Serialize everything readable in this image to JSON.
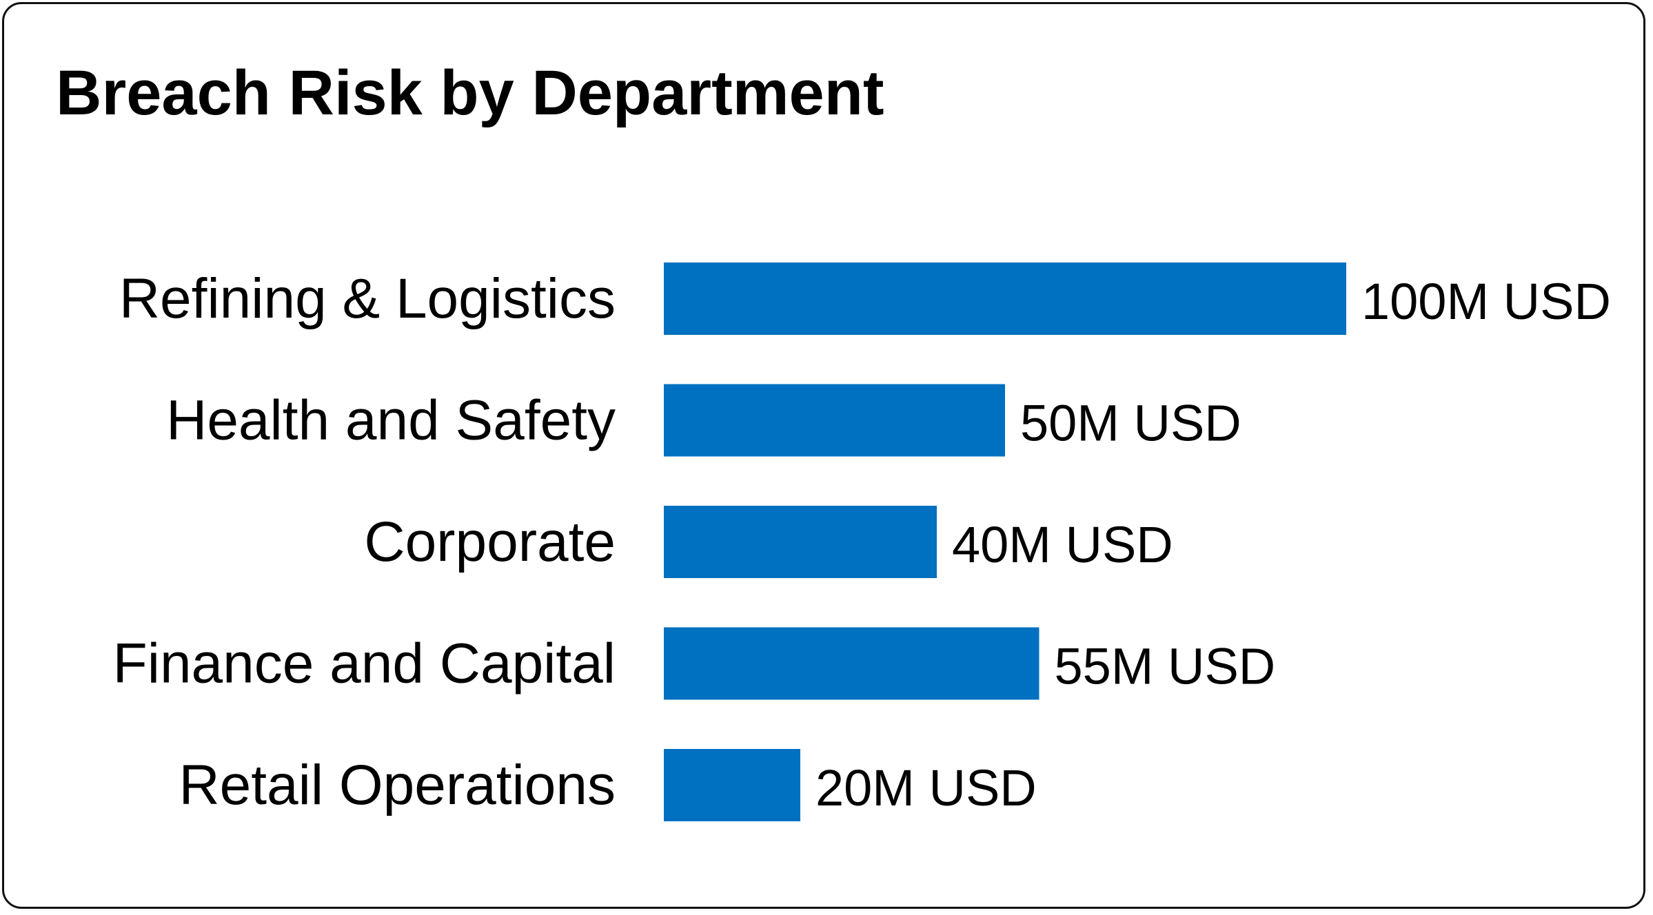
{
  "chart_data": {
    "type": "bar",
    "orientation": "horizontal",
    "title": "Breach Risk by Department",
    "categories": [
      "Refining & Logistics",
      "Health and Safety",
      "Corporate",
      "Finance and Capital",
      "Retail Operations"
    ],
    "values": [
      100,
      50,
      40,
      55,
      20
    ],
    "value_labels": [
      "100M USD",
      "50M USD",
      "40M USD",
      "55M USD",
      "20M USD"
    ],
    "unit": "M USD",
    "xlim": [
      0,
      100
    ],
    "grid": false,
    "legend": "none",
    "bar_color": "#0070C0"
  }
}
